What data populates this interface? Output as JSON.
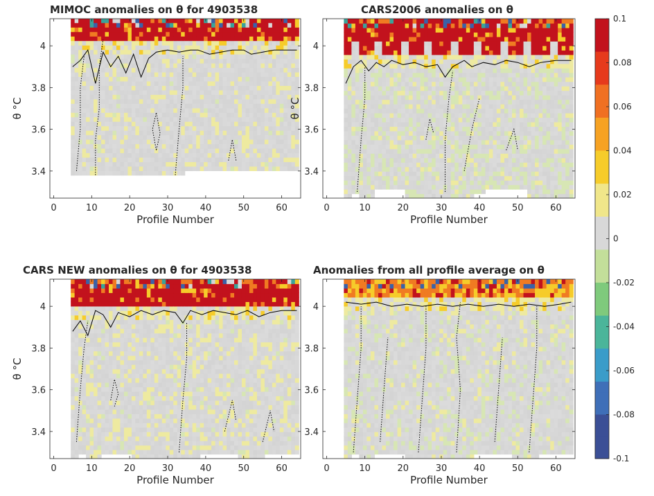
{
  "figure": {
    "colorbar": {
      "range": [
        -0.1,
        0.1
      ],
      "tick_labels": [
        "0.1",
        "0.08",
        "0.06",
        "0.04",
        "0.02",
        "0",
        "-0.02",
        "-0.04",
        "-0.06",
        "-0.08",
        "-0.1"
      ],
      "colormap": [
        "#3b4f96",
        "#3f6fb8",
        "#3a9cc9",
        "#4bb59a",
        "#7fca7c",
        "#c3df9a",
        "#d8d8d8",
        "#f0e68a",
        "#f6cc2a",
        "#f6a223",
        "#f07022",
        "#e63a1c",
        "#c2121d"
      ]
    },
    "colors": {
      "neutral": "#d8d8d8",
      "pale_yellow": "#eeeaa0",
      "pale_green": "#d7e6b4",
      "red": "#c2121d",
      "orange": "#f07b22",
      "yellow": "#f6cc2a",
      "blue": "#3b62a8",
      "teal": "#3aa39a"
    }
  },
  "chart_data": [
    {
      "type": "heatmap",
      "title": "MIMOC anomalies on θ  for 4903538",
      "xlabel": "Profile Number",
      "ylabel": "θ °C",
      "xlim": [
        -1,
        65
      ],
      "ylim": [
        3.27,
        4.13
      ],
      "xticks": [
        "0",
        "10",
        "20",
        "30",
        "40",
        "50",
        "60"
      ],
      "yticks": [
        "3.4",
        "3.6",
        "3.8",
        "4"
      ],
      "data_range": {
        "x": [
          5,
          64
        ],
        "y": [
          3.38,
          4.13
        ]
      },
      "bottom_edge": [
        [
          5,
          3.38
        ],
        [
          35,
          3.38
        ],
        [
          35,
          3.41
        ],
        [
          64,
          3.41
        ]
      ],
      "saturated_band_bottom": 4.03,
      "zero_contour": [
        [
          5,
          3.9
        ],
        [
          7,
          3.93
        ],
        [
          9,
          3.98
        ],
        [
          11,
          3.82
        ],
        [
          13,
          3.97
        ],
        [
          15,
          3.9
        ],
        [
          17,
          3.95
        ],
        [
          19,
          3.87
        ],
        [
          21,
          3.96
        ],
        [
          23,
          3.85
        ],
        [
          25,
          3.94
        ],
        [
          27,
          3.97
        ],
        [
          30,
          3.98
        ],
        [
          33,
          3.97
        ],
        [
          36,
          3.98
        ],
        [
          38,
          3.98
        ],
        [
          41,
          3.96
        ],
        [
          44,
          3.97
        ],
        [
          47,
          3.98
        ],
        [
          50,
          3.98
        ],
        [
          52,
          3.96
        ],
        [
          55,
          3.97
        ],
        [
          58,
          3.98
        ],
        [
          61,
          3.98
        ],
        [
          64,
          3.98
        ]
      ],
      "dotted_contours": [
        [
          [
            6,
            3.4
          ],
          [
            7,
            3.6
          ],
          [
            7,
            3.8
          ],
          [
            8,
            3.95
          ]
        ],
        [
          [
            11,
            3.38
          ],
          [
            11,
            3.55
          ],
          [
            12,
            3.7
          ],
          [
            12,
            3.9
          ],
          [
            13,
            4.03
          ]
        ],
        [
          [
            32,
            3.38
          ],
          [
            33,
            3.6
          ],
          [
            34,
            3.8
          ],
          [
            34,
            3.95
          ]
        ],
        [
          [
            27,
            3.5
          ],
          [
            26,
            3.6
          ],
          [
            27,
            3.68
          ],
          [
            28,
            3.58
          ],
          [
            27,
            3.5
          ]
        ],
        [
          [
            46,
            3.45
          ],
          [
            47,
            3.55
          ],
          [
            48,
            3.45
          ]
        ]
      ]
    },
    {
      "type": "heatmap",
      "title": "CARS2006 anomalies on θ",
      "xlabel": "Profile Number",
      "ylabel": "θ °C",
      "xlim": [
        -1,
        65
      ],
      "ylim": [
        3.27,
        4.13
      ],
      "xticks": [
        "0",
        "10",
        "20",
        "30",
        "40",
        "50",
        "60"
      ],
      "yticks": [
        "3.4",
        "3.6",
        "3.8",
        "4"
      ],
      "data_range": {
        "x": [
          5,
          64
        ],
        "y": [
          3.27,
          4.13
        ]
      },
      "saturated_band_bottom": 3.95,
      "zero_contour": [
        [
          5,
          3.82
        ],
        [
          7,
          3.9
        ],
        [
          9,
          3.93
        ],
        [
          11,
          3.88
        ],
        [
          13,
          3.92
        ],
        [
          15,
          3.9
        ],
        [
          17,
          3.93
        ],
        [
          20,
          3.91
        ],
        [
          23,
          3.92
        ],
        [
          26,
          3.9
        ],
        [
          29,
          3.91
        ],
        [
          31,
          3.85
        ],
        [
          33,
          3.9
        ],
        [
          36,
          3.93
        ],
        [
          38,
          3.9
        ],
        [
          41,
          3.92
        ],
        [
          44,
          3.91
        ],
        [
          47,
          3.93
        ],
        [
          50,
          3.92
        ],
        [
          53,
          3.9
        ],
        [
          56,
          3.92
        ],
        [
          60,
          3.93
        ],
        [
          64,
          3.93
        ]
      ],
      "dotted_contours": [
        [
          [
            8,
            3.3
          ],
          [
            9,
            3.55
          ],
          [
            10,
            3.75
          ],
          [
            10,
            3.9
          ]
        ],
        [
          [
            31,
            3.3
          ],
          [
            31,
            3.55
          ],
          [
            32,
            3.75
          ],
          [
            33,
            3.88
          ]
        ],
        [
          [
            36,
            3.4
          ],
          [
            38,
            3.6
          ],
          [
            40,
            3.75
          ]
        ],
        [
          [
            26,
            3.55
          ],
          [
            27,
            3.65
          ],
          [
            28,
            3.58
          ]
        ],
        [
          [
            47,
            3.5
          ],
          [
            49,
            3.6
          ],
          [
            50,
            3.5
          ]
        ]
      ]
    },
    {
      "type": "heatmap",
      "title": "CARS NEW anomalies on θ for 4903538",
      "xlabel": "Profile Number",
      "ylabel": "θ °C",
      "xlim": [
        -1,
        65
      ],
      "ylim": [
        3.27,
        4.13
      ],
      "xticks": [
        "0",
        "10",
        "20",
        "30",
        "40",
        "50",
        "60"
      ],
      "yticks": [
        "3.4",
        "3.6",
        "3.8",
        "4"
      ],
      "data_range": {
        "x": [
          5,
          64
        ],
        "y": [
          3.27,
          4.13
        ]
      },
      "saturated_band_bottom": 4.0,
      "zero_contour": [
        [
          5,
          3.88
        ],
        [
          7,
          3.93
        ],
        [
          9,
          3.86
        ],
        [
          11,
          3.98
        ],
        [
          13,
          3.96
        ],
        [
          15,
          3.9
        ],
        [
          17,
          3.97
        ],
        [
          20,
          3.95
        ],
        [
          23,
          3.98
        ],
        [
          26,
          3.96
        ],
        [
          29,
          3.98
        ],
        [
          32,
          3.97
        ],
        [
          34,
          3.92
        ],
        [
          36,
          3.98
        ],
        [
          39,
          3.96
        ],
        [
          42,
          3.98
        ],
        [
          45,
          3.97
        ],
        [
          48,
          3.96
        ],
        [
          51,
          3.98
        ],
        [
          54,
          3.95
        ],
        [
          57,
          3.97
        ],
        [
          60,
          3.98
        ],
        [
          64,
          3.98
        ]
      ],
      "dotted_contours": [
        [
          [
            6,
            3.35
          ],
          [
            7,
            3.6
          ],
          [
            8,
            3.8
          ],
          [
            9,
            3.93
          ]
        ],
        [
          [
            33,
            3.3
          ],
          [
            34,
            3.55
          ],
          [
            35,
            3.75
          ],
          [
            35,
            3.92
          ]
        ],
        [
          [
            15,
            3.55
          ],
          [
            16,
            3.65
          ],
          [
            17,
            3.58
          ],
          [
            16,
            3.52
          ]
        ],
        [
          [
            45,
            3.4
          ],
          [
            47,
            3.55
          ],
          [
            48,
            3.45
          ]
        ],
        [
          [
            55,
            3.35
          ],
          [
            57,
            3.5
          ],
          [
            58,
            3.4
          ]
        ]
      ]
    },
    {
      "type": "heatmap",
      "title": "Anomalies from all profile average on θ",
      "xlabel": "Profile Number",
      "ylabel": "",
      "xlim": [
        -1,
        65
      ],
      "ylim": [
        3.27,
        4.13
      ],
      "xticks": [
        "0",
        "10",
        "20",
        "30",
        "40",
        "50",
        "60"
      ],
      "yticks": [
        "3.4",
        "3.6",
        "3.8",
        "4"
      ],
      "data_range": {
        "x": [
          5,
          64
        ],
        "y": [
          3.27,
          4.13
        ]
      },
      "saturated_band_bottom": 4.05,
      "zero_contour": [
        [
          5,
          4.02
        ],
        [
          9,
          4.01
        ],
        [
          13,
          4.02
        ],
        [
          17,
          4.0
        ],
        [
          21,
          4.01
        ],
        [
          25,
          4.0
        ],
        [
          29,
          4.01
        ],
        [
          33,
          4.0
        ],
        [
          37,
          4.01
        ],
        [
          41,
          4.0
        ],
        [
          45,
          4.01
        ],
        [
          49,
          4.0
        ],
        [
          53,
          4.01
        ],
        [
          57,
          4.0
        ],
        [
          61,
          4.01
        ],
        [
          64,
          4.02
        ]
      ],
      "dotted_contours": [
        [
          [
            7,
            3.3
          ],
          [
            8,
            3.55
          ],
          [
            9,
            3.8
          ],
          [
            9,
            4.0
          ]
        ],
        [
          [
            14,
            3.35
          ],
          [
            15,
            3.6
          ],
          [
            16,
            3.85
          ]
        ],
        [
          [
            24,
            3.3
          ],
          [
            25,
            3.55
          ],
          [
            26,
            3.8
          ],
          [
            26,
            4.0
          ]
        ],
        [
          [
            34,
            3.3
          ],
          [
            35,
            3.6
          ],
          [
            34,
            3.85
          ],
          [
            35,
            4.02
          ]
        ],
        [
          [
            44,
            3.35
          ],
          [
            45,
            3.6
          ],
          [
            46,
            3.85
          ]
        ],
        [
          [
            53,
            3.3
          ],
          [
            54,
            3.55
          ],
          [
            55,
            3.8
          ],
          [
            55,
            4.0
          ]
        ]
      ]
    }
  ]
}
